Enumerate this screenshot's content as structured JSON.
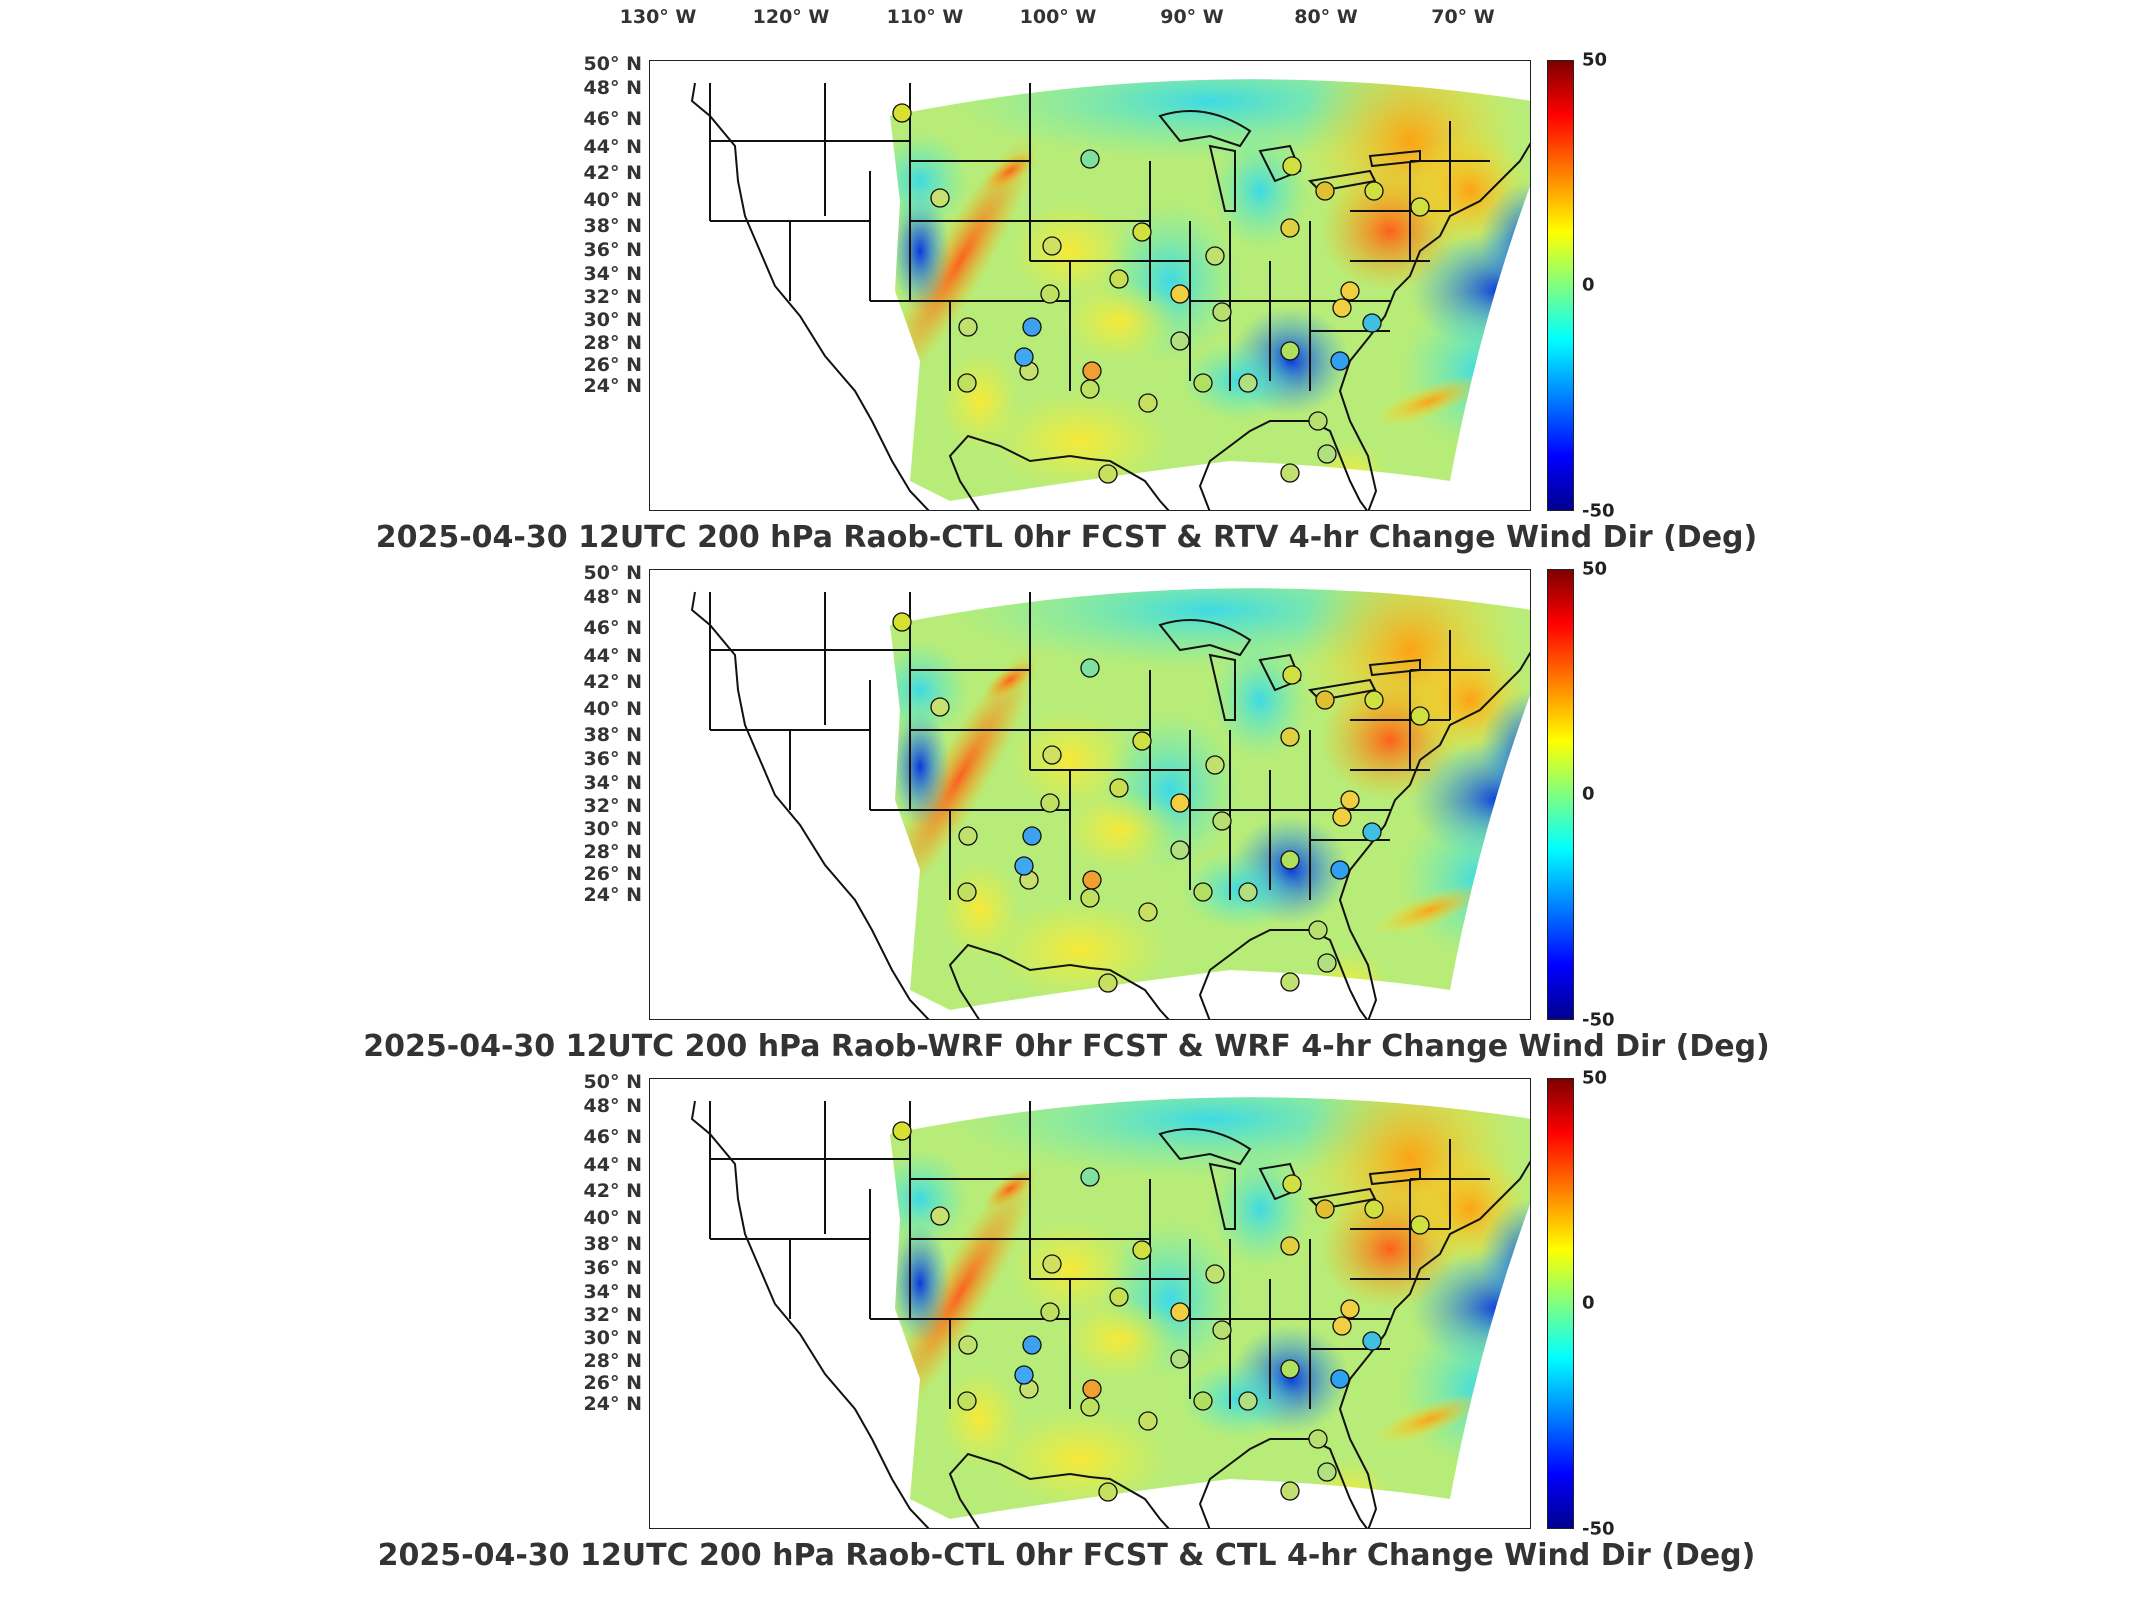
{
  "longitude_labels": [
    "130° W",
    "120° W",
    "110° W",
    "100° W",
    "90° W",
    "80° W",
    "70° W"
  ],
  "latitude_labels": [
    "50° N",
    "48° N",
    "46° N",
    "44° N",
    "42° N",
    "40° N",
    "38° N",
    "36° N",
    "34° N",
    "32° N",
    "30° N",
    "28° N",
    "26° N",
    "24° N"
  ],
  "colorbar": {
    "max_label": "50",
    "mid_label": "0",
    "min_label": "-50",
    "colormap": "jet"
  },
  "panels": [
    {
      "title": "2025-04-30 12UTC 200 hPa Raob-CTL 0hr FCST & RTV 4-hr Change Wind Dir (Deg)"
    },
    {
      "title": "2025-04-30 12UTC 200 hPa Raob-WRF 0hr FCST & WRF 4-hr Change Wind Dir (Deg)"
    },
    {
      "title": "2025-04-30 12UTC 200 hPa Raob-CTL 0hr FCST & CTL 4-hr Change Wind Dir (Deg)"
    }
  ],
  "colors": {
    "field_background": "#c8f070",
    "raob_marker_outline": "#111111",
    "boundary_color": "#111111"
  }
}
